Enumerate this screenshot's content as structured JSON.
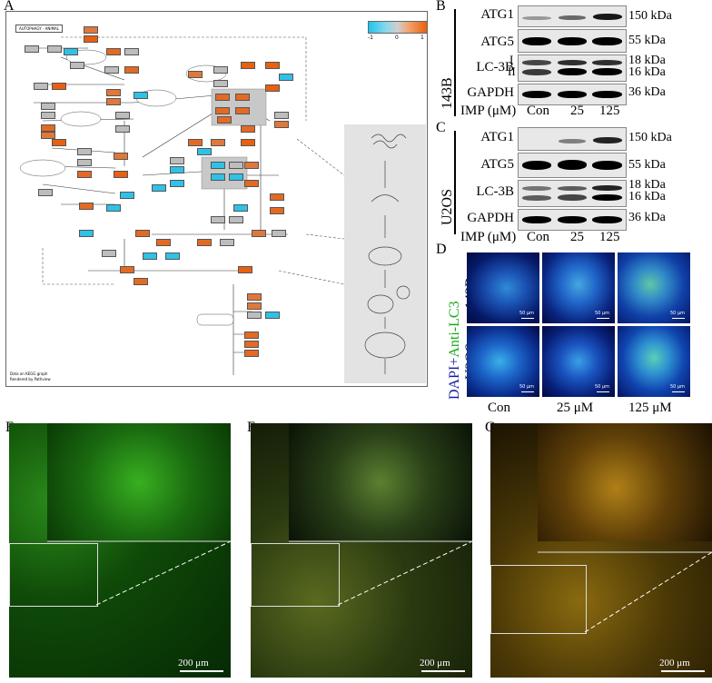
{
  "panels": {
    "a": "A",
    "b": "B",
    "c": "C",
    "d": "D",
    "e": "E",
    "f": "F",
    "g": "G"
  },
  "kegg": {
    "title": "AUTOPHAGY - ANIMAL",
    "legend_ticks": [
      "-1",
      "0",
      "1"
    ],
    "footer_line1": "Data on KEGG graph",
    "footer_line2": "Rendered by Pathview",
    "colors": {
      "low": "#1ec5ec",
      "mid": "#cfcfcf",
      "high": "#e86010"
    }
  },
  "western_b": {
    "row_label": "143B",
    "proteins": [
      "ATG1",
      "ATG5",
      "LC-3B",
      "GAPDH"
    ],
    "lc3_forms": [
      "I",
      "II"
    ],
    "kda": [
      "150 kDa",
      "55 kDa",
      "18 kDa",
      "16 kDa",
      "36 kDa"
    ],
    "x_title": "IMP (μM)",
    "x_ticks": [
      "Con",
      "25",
      "125"
    ]
  },
  "western_c": {
    "row_label": "U2OS",
    "proteins": [
      "ATG1",
      "ATG5",
      "LC-3B",
      "GAPDH"
    ],
    "kda": [
      "150 kDa",
      "55 kDa",
      "18 kDa",
      "16 kDa",
      "36 kDa"
    ],
    "x_title": "IMP (μM)",
    "x_ticks": [
      "Con",
      "25",
      "125"
    ]
  },
  "if_d": {
    "side_label_blue": "DAPI+",
    "side_label_green": "Anti-LC3",
    "rows": [
      "143B",
      "U2OS"
    ],
    "conditions": [
      "Con",
      "25 μM",
      "125 μM"
    ],
    "scale": "50 μm"
  },
  "micro": {
    "scale": "200 μm"
  }
}
